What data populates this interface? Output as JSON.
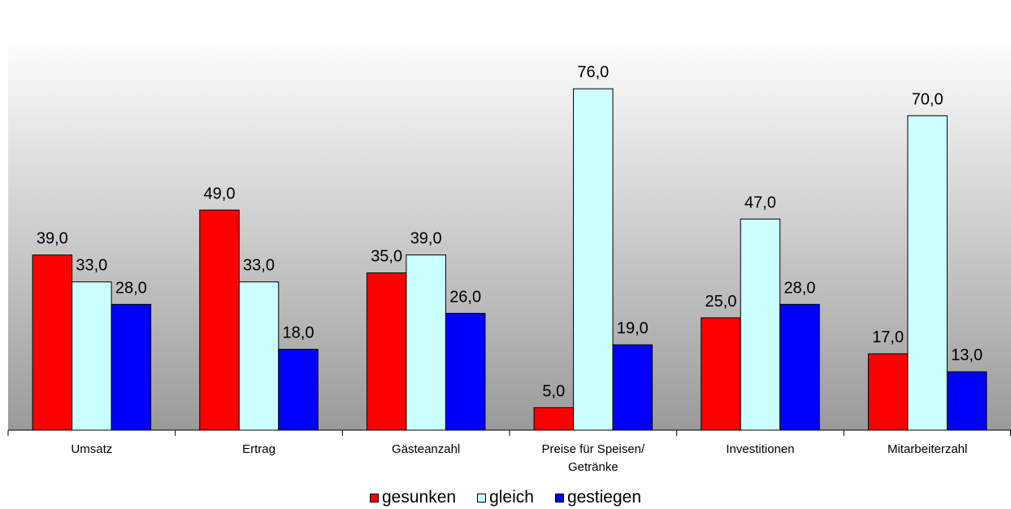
{
  "chart_data": {
    "type": "bar",
    "categories": [
      "Umsatz",
      "Ertrag",
      "Gästeanzahl",
      "Preise für Speisen/ Getränke",
      "Investitionen",
      "Mitarbeiterzahl"
    ],
    "category_lines": [
      [
        "Umsatz"
      ],
      [
        "Ertrag"
      ],
      [
        "Gästeanzahl"
      ],
      [
        "Preise für Speisen/",
        "Getränke"
      ],
      [
        "Investitionen"
      ],
      [
        "Mitarbeiterzahl"
      ]
    ],
    "series": [
      {
        "name": "gesunken",
        "color": "#ff0000",
        "values": [
          39.0,
          49.0,
          35.0,
          5.0,
          25.0,
          17.0
        ]
      },
      {
        "name": "gleich",
        "color": "#ccffff",
        "values": [
          33.0,
          33.0,
          39.0,
          76.0,
          47.0,
          70.0
        ]
      },
      {
        "name": "gestiegen",
        "color": "#0000ff",
        "values": [
          28.0,
          18.0,
          26.0,
          19.0,
          28.0,
          13.0
        ]
      }
    ],
    "value_labels": [
      [
        "39,0",
        "49,0",
        "35,0",
        "5,0",
        "25,0",
        "17,0"
      ],
      [
        "33,0",
        "33,0",
        "39,0",
        "76,0",
        "47,0",
        "70,0"
      ],
      [
        "28,0",
        "18,0",
        "26,0",
        "19,0",
        "28,0",
        "13,0"
      ]
    ],
    "ylim": [
      0,
      95
    ],
    "grid": false,
    "legend_position": "bottom",
    "background": "vertical gradient white to gray",
    "title": "",
    "xlabel": "",
    "ylabel": ""
  }
}
